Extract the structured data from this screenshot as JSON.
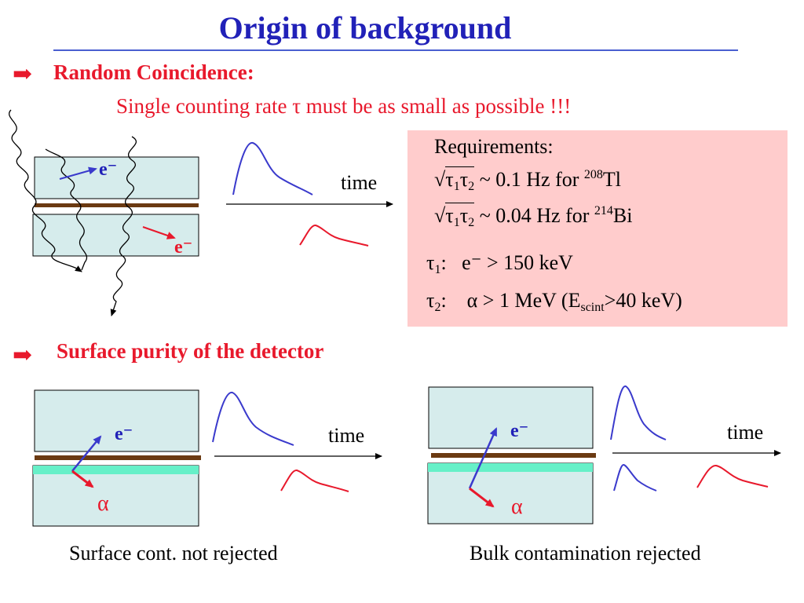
{
  "title": "Origin of background",
  "section1": {
    "heading": "Random Coincidence:",
    "subline": "Single counting rate τ must be as small as possible !!!",
    "electron_top": "e⁻",
    "electron_bottom": "e⁻",
    "time_label": "time"
  },
  "requirements": {
    "heading": "Requirements:",
    "line1": {
      "sym": "τ",
      "sub1": "1",
      "sub2": "2",
      "text": " ~ 0.1 Hz for ",
      "mass": "208",
      "element": "Tl"
    },
    "line2": {
      "sym": "τ",
      "sub1": "1",
      "sub2": "2",
      "text": " ~ 0.04 Hz for ",
      "mass": "214",
      "element": "Bi"
    },
    "tau1": {
      "sym": "τ",
      "sub": "1",
      "text": ":   e⁻ > 150 keV"
    },
    "tau2": {
      "sym": "τ",
      "sub": "2",
      "text_a": ":    α > 1 MeV (E",
      "scint_sub": "scint",
      "text_b": ">40 keV)"
    }
  },
  "section2": {
    "heading": "Surface purity of the detector",
    "left": {
      "electron": "e⁻",
      "alpha": "α",
      "time_label": "time",
      "caption": "Surface cont. not rejected"
    },
    "right": {
      "electron": "e⁻",
      "alpha": "α",
      "time_label": "time",
      "caption": "Bulk contamination rejected"
    }
  },
  "colors": {
    "title": "#2121b8",
    "accent_red": "#e8192c",
    "pulse_blue": "#3a3acc",
    "pulse_red": "#e8192c",
    "scintillator": "#d6ecec",
    "foil": "#6b3a12",
    "surface_layer": "#66f0c8",
    "requirements_box": "#ffcccc"
  }
}
